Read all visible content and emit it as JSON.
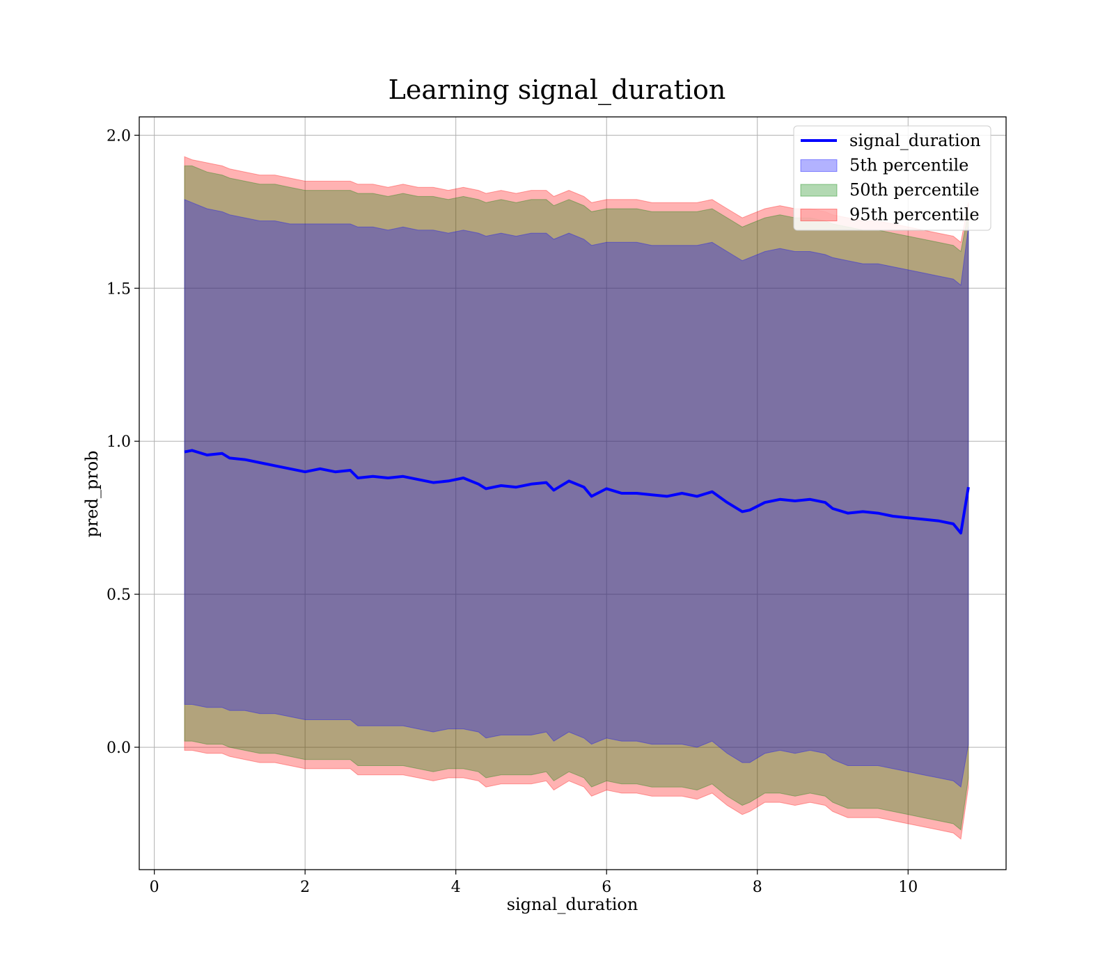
{
  "chart_data": {
    "type": "line",
    "title": "Learning signal_duration",
    "xlabel": "signal_duration",
    "ylabel": "pred_prob",
    "xlim": [
      -0.2,
      11.3
    ],
    "ylim": [
      -0.4,
      2.06
    ],
    "xticks": [
      0,
      2,
      4,
      6,
      8,
      10
    ],
    "xtick_labels": [
      "0",
      "2",
      "4",
      "6",
      "8",
      "10"
    ],
    "yticks": [
      0.0,
      0.5,
      1.0,
      1.5,
      2.0
    ],
    "ytick_labels": [
      "0.0",
      "0.5",
      "1.0",
      "1.5",
      "2.0"
    ],
    "grid": true,
    "legend_position": "top-right",
    "x": [
      0.4,
      0.5,
      0.7,
      0.9,
      1.0,
      1.2,
      1.4,
      1.6,
      1.8,
      2.0,
      2.2,
      2.4,
      2.6,
      2.7,
      2.9,
      3.1,
      3.3,
      3.5,
      3.7,
      3.9,
      4.1,
      4.3,
      4.4,
      4.6,
      4.8,
      5.0,
      5.2,
      5.3,
      5.5,
      5.7,
      5.8,
      6.0,
      6.2,
      6.4,
      6.6,
      6.8,
      7.0,
      7.2,
      7.4,
      7.6,
      7.8,
      7.9,
      8.1,
      8.3,
      8.5,
      8.7,
      8.9,
      9.0,
      9.2,
      9.4,
      9.6,
      9.8,
      10.0,
      10.2,
      10.4,
      10.6,
      10.7,
      10.8
    ],
    "series": [
      {
        "name": "signal_duration",
        "color": "#0000ff",
        "style": "line",
        "values": [
          0.965,
          0.97,
          0.955,
          0.96,
          0.945,
          0.94,
          0.93,
          0.92,
          0.91,
          0.9,
          0.91,
          0.9,
          0.905,
          0.88,
          0.885,
          0.88,
          0.885,
          0.875,
          0.865,
          0.87,
          0.88,
          0.86,
          0.845,
          0.855,
          0.85,
          0.86,
          0.865,
          0.84,
          0.87,
          0.85,
          0.82,
          0.845,
          0.83,
          0.83,
          0.825,
          0.82,
          0.83,
          0.82,
          0.835,
          0.8,
          0.77,
          0.775,
          0.8,
          0.81,
          0.805,
          0.81,
          0.8,
          0.78,
          0.765,
          0.77,
          0.765,
          0.755,
          0.75,
          0.745,
          0.74,
          0.73,
          0.7,
          0.85
        ]
      },
      {
        "name": "5th percentile",
        "color": "#0000ff",
        "style": "band",
        "upper": [
          1.79,
          1.78,
          1.76,
          1.75,
          1.74,
          1.73,
          1.72,
          1.72,
          1.71,
          1.71,
          1.71,
          1.71,
          1.71,
          1.7,
          1.7,
          1.69,
          1.7,
          1.69,
          1.69,
          1.68,
          1.69,
          1.68,
          1.67,
          1.68,
          1.67,
          1.68,
          1.68,
          1.66,
          1.68,
          1.66,
          1.64,
          1.65,
          1.65,
          1.65,
          1.64,
          1.64,
          1.64,
          1.64,
          1.65,
          1.62,
          1.59,
          1.6,
          1.62,
          1.63,
          1.62,
          1.62,
          1.61,
          1.6,
          1.59,
          1.58,
          1.58,
          1.57,
          1.56,
          1.55,
          1.54,
          1.53,
          1.51,
          1.7
        ],
        "lower": [
          0.14,
          0.14,
          0.13,
          0.13,
          0.12,
          0.12,
          0.11,
          0.11,
          0.1,
          0.09,
          0.09,
          0.09,
          0.09,
          0.07,
          0.07,
          0.07,
          0.07,
          0.06,
          0.05,
          0.06,
          0.06,
          0.05,
          0.03,
          0.04,
          0.04,
          0.04,
          0.05,
          0.02,
          0.05,
          0.03,
          0.01,
          0.03,
          0.02,
          0.02,
          0.01,
          0.01,
          0.01,
          0.0,
          0.02,
          -0.02,
          -0.05,
          -0.05,
          -0.02,
          -0.01,
          -0.02,
          -0.01,
          -0.02,
          -0.04,
          -0.06,
          -0.06,
          -0.06,
          -0.07,
          -0.08,
          -0.09,
          -0.1,
          -0.11,
          -0.13,
          0.01
        ]
      },
      {
        "name": "50th percentile",
        "color": "#008000",
        "style": "band",
        "upper": [
          1.9,
          1.9,
          1.88,
          1.87,
          1.86,
          1.85,
          1.84,
          1.84,
          1.83,
          1.82,
          1.82,
          1.82,
          1.82,
          1.81,
          1.81,
          1.8,
          1.81,
          1.8,
          1.8,
          1.79,
          1.8,
          1.79,
          1.78,
          1.79,
          1.78,
          1.79,
          1.79,
          1.77,
          1.79,
          1.77,
          1.75,
          1.76,
          1.76,
          1.76,
          1.75,
          1.75,
          1.75,
          1.75,
          1.76,
          1.73,
          1.7,
          1.71,
          1.73,
          1.74,
          1.73,
          1.73,
          1.72,
          1.71,
          1.7,
          1.69,
          1.69,
          1.68,
          1.67,
          1.66,
          1.65,
          1.64,
          1.62,
          1.75
        ],
        "lower": [
          0.02,
          0.02,
          0.01,
          0.01,
          0.0,
          -0.01,
          -0.02,
          -0.02,
          -0.03,
          -0.04,
          -0.04,
          -0.04,
          -0.04,
          -0.06,
          -0.06,
          -0.06,
          -0.06,
          -0.07,
          -0.08,
          -0.07,
          -0.07,
          -0.08,
          -0.1,
          -0.09,
          -0.09,
          -0.09,
          -0.08,
          -0.11,
          -0.08,
          -0.1,
          -0.13,
          -0.11,
          -0.12,
          -0.12,
          -0.13,
          -0.13,
          -0.13,
          -0.14,
          -0.12,
          -0.16,
          -0.19,
          -0.18,
          -0.15,
          -0.15,
          -0.16,
          -0.15,
          -0.16,
          -0.18,
          -0.2,
          -0.2,
          -0.2,
          -0.21,
          -0.22,
          -0.23,
          -0.24,
          -0.25,
          -0.27,
          -0.1
        ]
      },
      {
        "name": "95th percentile",
        "color": "#ff0000",
        "style": "band",
        "upper": [
          1.93,
          1.92,
          1.91,
          1.9,
          1.89,
          1.88,
          1.87,
          1.87,
          1.86,
          1.85,
          1.85,
          1.85,
          1.85,
          1.84,
          1.84,
          1.83,
          1.84,
          1.83,
          1.83,
          1.82,
          1.83,
          1.82,
          1.81,
          1.82,
          1.81,
          1.82,
          1.82,
          1.8,
          1.82,
          1.8,
          1.78,
          1.79,
          1.79,
          1.79,
          1.78,
          1.78,
          1.78,
          1.78,
          1.79,
          1.76,
          1.73,
          1.74,
          1.76,
          1.77,
          1.76,
          1.76,
          1.75,
          1.74,
          1.73,
          1.72,
          1.72,
          1.71,
          1.7,
          1.69,
          1.68,
          1.67,
          1.65,
          1.78
        ],
        "lower": [
          -0.01,
          -0.01,
          -0.02,
          -0.02,
          -0.03,
          -0.04,
          -0.05,
          -0.05,
          -0.06,
          -0.07,
          -0.07,
          -0.07,
          -0.07,
          -0.09,
          -0.09,
          -0.09,
          -0.09,
          -0.1,
          -0.11,
          -0.1,
          -0.1,
          -0.11,
          -0.13,
          -0.12,
          -0.12,
          -0.12,
          -0.11,
          -0.14,
          -0.11,
          -0.13,
          -0.16,
          -0.14,
          -0.15,
          -0.15,
          -0.16,
          -0.16,
          -0.16,
          -0.17,
          -0.15,
          -0.19,
          -0.22,
          -0.21,
          -0.18,
          -0.18,
          -0.19,
          -0.18,
          -0.19,
          -0.21,
          -0.23,
          -0.23,
          -0.23,
          -0.24,
          -0.25,
          -0.26,
          -0.27,
          -0.28,
          -0.3,
          -0.13
        ]
      }
    ]
  }
}
